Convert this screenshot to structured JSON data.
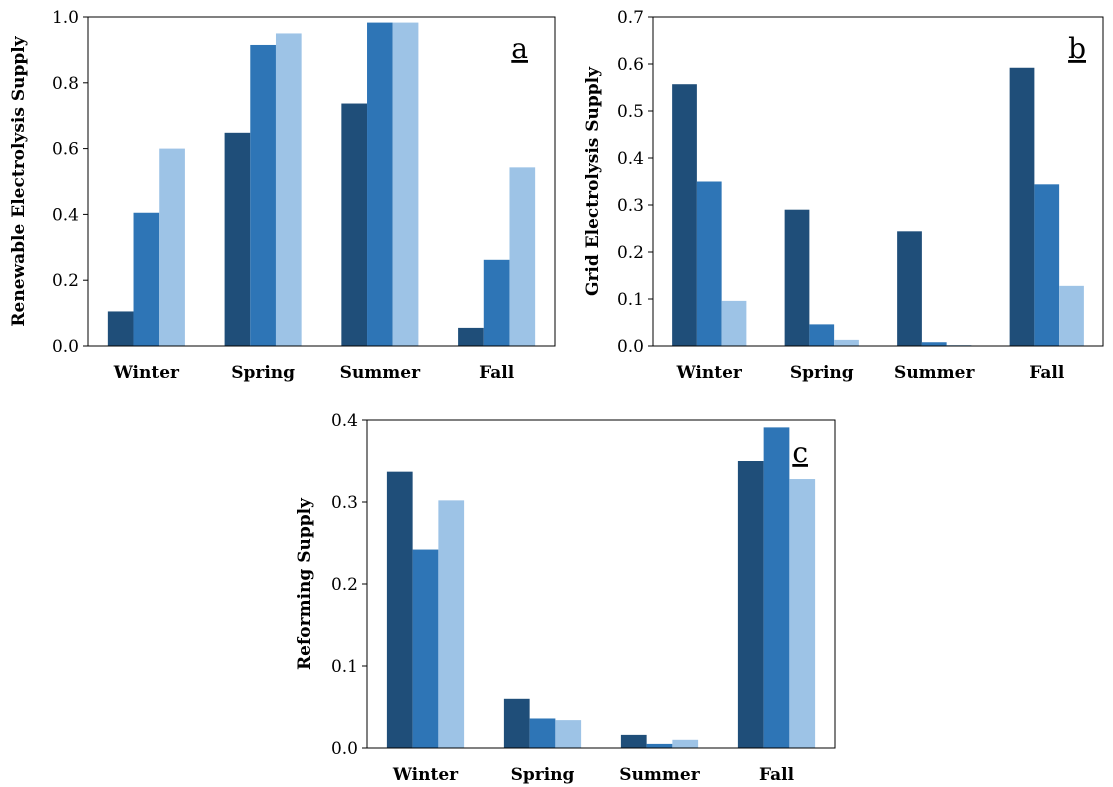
{
  "colors": {
    "series": [
      "#1f4e79",
      "#2e75b6",
      "#9dc3e6"
    ]
  },
  "chart_data": [
    {
      "type": "bar",
      "panel_label": "a",
      "ylabel": "Renewable Electrolysis Supply",
      "xlabel": "",
      "categories": [
        "Winter",
        "Spring",
        "Summer",
        "Fall"
      ],
      "ylim": [
        0,
        1.0
      ],
      "yticks": [
        "0.0",
        "0.2",
        "0.4",
        "0.6",
        "0.8",
        "1.0"
      ],
      "grid": false,
      "series": [
        {
          "values": [
            0.105,
            0.648,
            0.737,
            0.055
          ]
        },
        {
          "values": [
            0.405,
            0.915,
            0.983,
            0.262
          ]
        },
        {
          "values": [
            0.6,
            0.95,
            0.983,
            0.543
          ]
        }
      ]
    },
    {
      "type": "bar",
      "panel_label": "b",
      "ylabel": "Grid Electrolysis Supply",
      "xlabel": "",
      "categories": [
        "Winter",
        "Spring",
        "Summer",
        "Fall"
      ],
      "ylim": [
        0,
        0.7
      ],
      "yticks": [
        "0.0",
        "0.1",
        "0.2",
        "0.3",
        "0.4",
        "0.5",
        "0.6",
        "0.7"
      ],
      "grid": false,
      "series": [
        {
          "values": [
            0.557,
            0.29,
            0.244,
            0.592
          ]
        },
        {
          "values": [
            0.35,
            0.046,
            0.008,
            0.344
          ]
        },
        {
          "values": [
            0.096,
            0.013,
            0.002,
            0.128
          ]
        }
      ]
    },
    {
      "type": "bar",
      "panel_label": "c",
      "ylabel": "Reforming Supply",
      "xlabel": "",
      "categories": [
        "Winter",
        "Spring",
        "Summer",
        "Fall"
      ],
      "ylim": [
        0,
        0.4
      ],
      "yticks": [
        "0.0",
        "0.1",
        "0.2",
        "0.3",
        "0.4"
      ],
      "grid": false,
      "series": [
        {
          "values": [
            0.337,
            0.06,
            0.016,
            0.35
          ]
        },
        {
          "values": [
            0.242,
            0.036,
            0.005,
            0.391
          ]
        },
        {
          "values": [
            0.302,
            0.034,
            0.01,
            0.328
          ]
        }
      ]
    }
  ]
}
